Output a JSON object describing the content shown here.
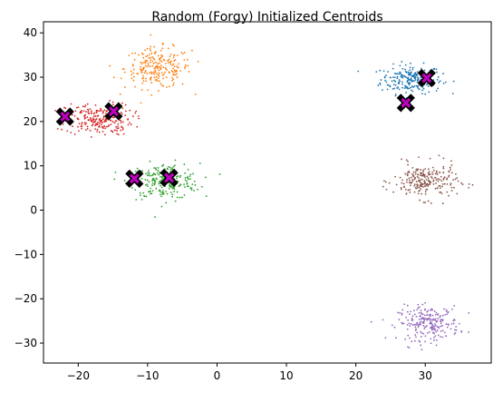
{
  "chart_data": {
    "type": "scatter",
    "title": "Random (Forgy) Initialized Centroids",
    "xlabel": "",
    "ylabel": "",
    "xlim": [
      -25,
      39.5
    ],
    "ylim": [
      -34.5,
      42.5
    ],
    "xticks": [
      -20,
      -10,
      0,
      10,
      20,
      30
    ],
    "yticks": [
      -30,
      -20,
      -10,
      0,
      10,
      20,
      30,
      40
    ],
    "xtick_labels": [
      "−20",
      "−10",
      "0",
      "10",
      "20",
      "30"
    ],
    "ytick_labels": [
      "−30",
      "−20",
      "−10",
      "0",
      "10",
      "20",
      "30",
      "40"
    ],
    "grid": false,
    "clusters": [
      {
        "color": "#1f77b4",
        "center": [
          28.0,
          29.5
        ],
        "spread": [
          2.2,
          1.6
        ],
        "count": 230
      },
      {
        "color": "#ff7f0e",
        "center": [
          -8.5,
          32.0
        ],
        "spread": [
          2.4,
          2.3
        ],
        "count": 230
      },
      {
        "color": "#2ca02c",
        "center": [
          -7.5,
          6.5
        ],
        "spread": [
          2.5,
          2.0
        ],
        "count": 230
      },
      {
        "color": "#d62728",
        "center": [
          -17.0,
          20.5
        ],
        "spread": [
          2.4,
          1.8
        ],
        "count": 230
      },
      {
        "color": "#9467bd",
        "center": [
          30.5,
          -25.5
        ],
        "spread": [
          2.2,
          1.9
        ],
        "count": 230
      },
      {
        "color": "#8c564b",
        "center": [
          30.0,
          6.5
        ],
        "spread": [
          2.3,
          2.0
        ],
        "count": 230
      }
    ],
    "centroids": [
      [
        30.2,
        29.8
      ],
      [
        27.2,
        24.2
      ],
      [
        -14.9,
        22.3
      ],
      [
        -21.9,
        21.1
      ],
      [
        -11.9,
        7.1
      ],
      [
        -6.9,
        7.3
      ]
    ],
    "centroid_style": {
      "outer_color": "#000000",
      "inner_color": "#bf00bf",
      "marker": "X"
    }
  }
}
